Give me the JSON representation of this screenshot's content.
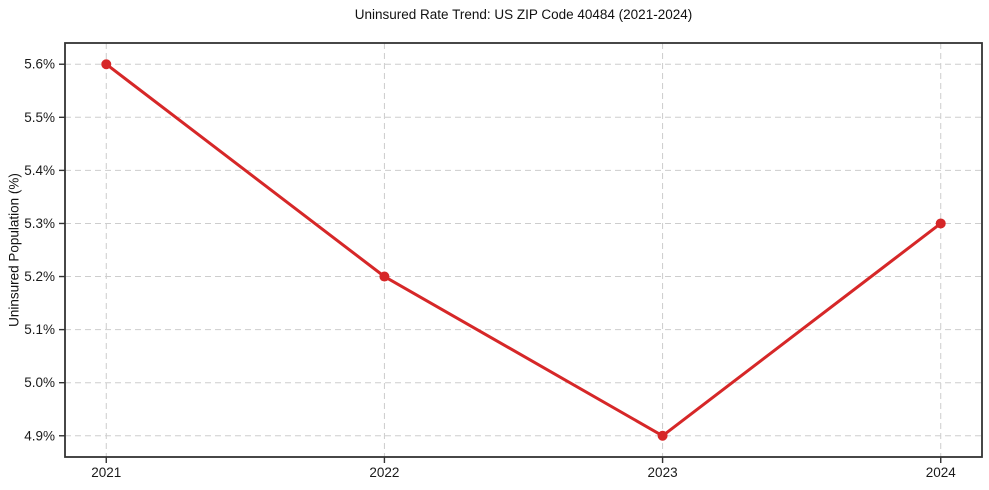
{
  "chart": {
    "title": "Uninsured Rate Trend: US ZIP Code 40484 (2021-2024)"
  },
  "chart_data": {
    "type": "line",
    "title": "Uninsured Rate Trend: US ZIP Code 40484 (2021-2024)",
    "xlabel": "",
    "ylabel": "Uninsured Population (%)",
    "x": [
      2021,
      2022,
      2023,
      2024
    ],
    "x_tick_labels": [
      "2021",
      "2022",
      "2023",
      "2024"
    ],
    "values": [
      5.6,
      5.2,
      4.9,
      5.3
    ],
    "y_ticks": [
      4.9,
      5.0,
      5.1,
      5.2,
      5.3,
      5.4,
      5.5,
      5.6
    ],
    "y_tick_labels": [
      "4.9%",
      "5.0%",
      "5.1%",
      "5.2%",
      "5.3%",
      "5.4%",
      "5.5%",
      "5.6%"
    ],
    "ylim": [
      4.86,
      5.64
    ],
    "grid": true,
    "grid_style": "dashed",
    "legend": "none",
    "marker": "o",
    "marker_radius": 5,
    "line_width": 3,
    "colors": {
      "line": "#d62728",
      "marker": "#d62728",
      "grid": "#cdcdcd",
      "spine": "#333333",
      "text": "#1a1a1a",
      "background": "#ffffff"
    }
  }
}
